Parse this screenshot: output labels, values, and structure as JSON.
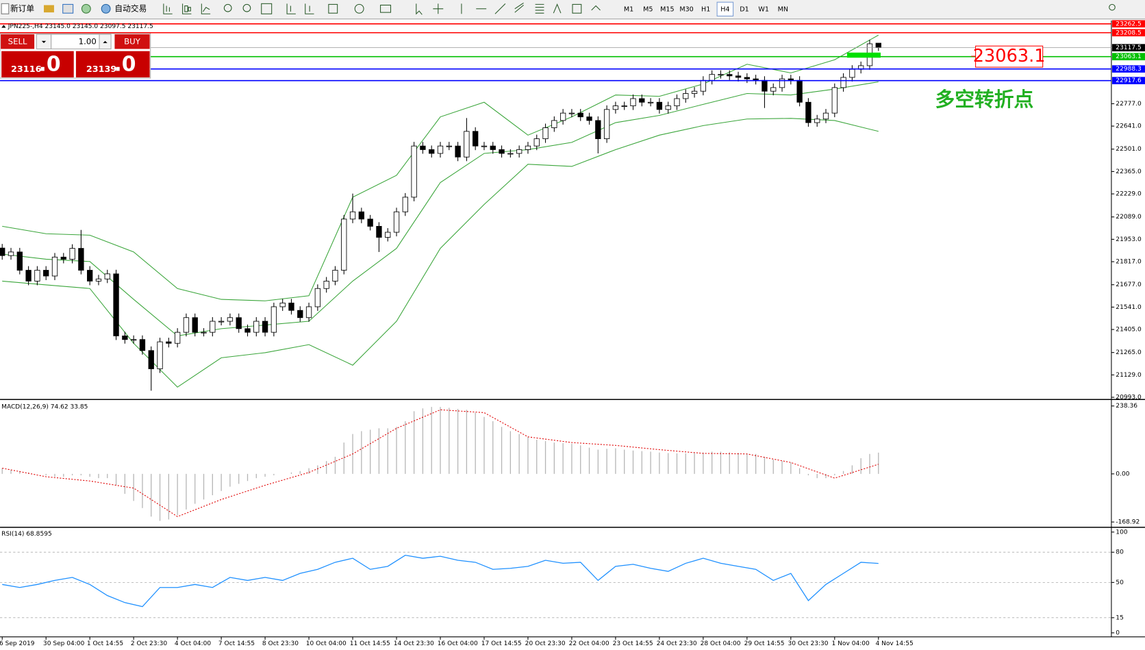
{
  "toolbar": {
    "new_order": "新订单",
    "auto_trading": "自动交易",
    "timeframes": [
      "M1",
      "M5",
      "M15",
      "M30",
      "H1",
      "H4",
      "D1",
      "W1",
      "MN"
    ],
    "active_timeframe": "H4"
  },
  "trade_panel": {
    "sell": "SELL",
    "buy": "BUY",
    "lots": "1.00",
    "sell_price": "23116",
    "sell_pips": ".0",
    "buy_price": "23139",
    "buy_pips": ".0"
  },
  "chart_data": [
    {
      "type": "candlestick",
      "title": "JPN225-,H4  23145.0 23145.0 23097.5 23117.5",
      "categories": [
        "6 Sep 2019",
        null,
        null,
        null,
        null,
        "30 Sep 04:00",
        null,
        null,
        null,
        null,
        "1 Oct 14:55",
        null,
        null,
        null,
        null,
        "2 Oct 23:30",
        null,
        null,
        null,
        null,
        "4 Oct 04:00",
        null,
        null,
        null,
        null,
        "7 Oct 14:55",
        null,
        null,
        null,
        null,
        "8 Oct 23:30",
        null,
        null,
        null,
        null,
        "10 Oct 04:00",
        null,
        null,
        null,
        null,
        "11 Oct 14:55",
        null,
        null,
        null,
        null,
        "14 Oct 23:30",
        null,
        null,
        null,
        null,
        "16 Oct 04:00",
        null,
        null,
        null,
        null,
        "17 Oct 14:55",
        null,
        null,
        null,
        null,
        "20 Oct 23:30",
        null,
        null,
        null,
        null,
        "22 Oct 04:00",
        null,
        null,
        null,
        null,
        "23 Oct 14:55",
        null,
        null,
        null,
        null,
        "24 Oct 23:30",
        null,
        null,
        null,
        null,
        "28 Oct 04:00",
        null,
        null,
        null,
        null,
        "29 Oct 14:55",
        null,
        null,
        null,
        null,
        "30 Oct 23:30",
        null,
        null,
        null,
        null,
        "1 Nov 04:00",
        null,
        null,
        null,
        null,
        "4 Nov 14:55"
      ],
      "open": [
        21900,
        21854,
        21876,
        21765,
        21699,
        21765,
        21730,
        21845,
        21832,
        21898,
        21765,
        21699,
        21712,
        21743,
        21366,
        21344,
        21344,
        21277,
        21166,
        21330,
        21321,
        21388,
        21477,
        21388,
        21388,
        21455,
        21455,
        21477,
        21410,
        21388,
        21455,
        21388,
        21543,
        21566,
        21521,
        21477,
        21543,
        21654,
        21699,
        21765,
        22076,
        22120,
        22076,
        22032,
        21965,
        21996,
        22120,
        22209,
        22520,
        22498,
        22475,
        22520,
        22520,
        22453,
        22609,
        22520,
        22520,
        22498,
        22475,
        22475,
        22498,
        22520,
        22564,
        22631,
        22675,
        22720,
        22720,
        22697,
        22675,
        22564,
        22742,
        22764,
        22764,
        22808,
        22786,
        22786,
        22742,
        22764,
        22808,
        22839,
        22853,
        22919,
        22955,
        22955,
        22946,
        22937,
        22928,
        22919,
        22853,
        22875,
        22928,
        22919,
        22786,
        22662,
        22684,
        22720,
        22875,
        22937,
        22986,
        23008,
        23145
      ],
      "high": [
        21925,
        21901,
        21901,
        21790,
        21790,
        21790,
        21870,
        21870,
        21923,
        22010,
        21790,
        21737,
        21768,
        21768,
        21391,
        21369,
        21369,
        21302,
        21355,
        21355,
        21413,
        21502,
        21502,
        21413,
        21480,
        21480,
        21502,
        21502,
        21435,
        21480,
        21480,
        21568,
        21591,
        21591,
        21546,
        21568,
        21679,
        21724,
        21790,
        22101,
        22231,
        22145,
        22101,
        22057,
        22021,
        22145,
        22234,
        22545,
        22545,
        22523,
        22545,
        22545,
        22545,
        22690,
        22634,
        22545,
        22545,
        22523,
        22500,
        22523,
        22545,
        22589,
        22656,
        22700,
        22745,
        22745,
        22745,
        22722,
        22700,
        22767,
        22789,
        22789,
        22833,
        22833,
        22811,
        22811,
        22789,
        22833,
        22864,
        22878,
        22944,
        22980,
        22980,
        22980,
        22971,
        22962,
        22953,
        22944,
        22900,
        22953,
        22953,
        22944,
        22811,
        22709,
        22745,
        22900,
        22962,
        23011,
        23033,
        23166,
        23145
      ],
      "low": [
        21829,
        21829,
        21740,
        21674,
        21674,
        21705,
        21705,
        21807,
        21807,
        21740,
        21674,
        21674,
        21687,
        21341,
        21319,
        21319,
        21252,
        21033,
        21141,
        21296,
        21296,
        21363,
        21363,
        21363,
        21363,
        21430,
        21430,
        21385,
        21363,
        21363,
        21363,
        21363,
        21518,
        21496,
        21452,
        21452,
        21518,
        21629,
        21674,
        21740,
        22051,
        22051,
        22007,
        21876,
        21940,
        21971,
        22095,
        22184,
        22473,
        22450,
        22450,
        22495,
        22428,
        22428,
        22495,
        22495,
        22473,
        22450,
        22450,
        22450,
        22473,
        22495,
        22539,
        22606,
        22650,
        22695,
        22672,
        22650,
        22475,
        22539,
        22717,
        22739,
        22739,
        22761,
        22761,
        22717,
        22717,
        22739,
        22783,
        22814,
        22828,
        22894,
        22930,
        22921,
        22912,
        22903,
        22894,
        22751,
        22828,
        22850,
        22894,
        22761,
        22637,
        22637,
        22659,
        22695,
        22850,
        22912,
        22961,
        22983,
        23097.5
      ],
      "close": [
        21854,
        21876,
        21765,
        21699,
        21765,
        21730,
        21845,
        21832,
        21898,
        21765,
        21699,
        21712,
        21743,
        21366,
        21344,
        21344,
        21277,
        21166,
        21330,
        21321,
        21388,
        21477,
        21388,
        21388,
        21455,
        21455,
        21477,
        21410,
        21388,
        21455,
        21388,
        21543,
        21566,
        21521,
        21477,
        21543,
        21654,
        21699,
        21765,
        22076,
        22120,
        22076,
        22032,
        21965,
        21996,
        22120,
        22209,
        22520,
        22498,
        22475,
        22520,
        22520,
        22453,
        22609,
        22520,
        22520,
        22498,
        22475,
        22475,
        22498,
        22520,
        22564,
        22631,
        22675,
        22720,
        22720,
        22697,
        22675,
        22564,
        22742,
        22764,
        22764,
        22808,
        22786,
        22786,
        22742,
        22764,
        22808,
        22839,
        22853,
        22919,
        22955,
        22955,
        22946,
        22937,
        22928,
        22919,
        22853,
        22875,
        22928,
        22919,
        22786,
        22662,
        22684,
        22720,
        22875,
        22937,
        22986,
        23008,
        23141,
        23117.5
      ],
      "up_color": "#ffffff",
      "down_color": "#000000",
      "bands": [
        {
          "color": "#3aa53a",
          "x": [
            0,
            5,
            10,
            15,
            20,
            25,
            30,
            35,
            40,
            45,
            50,
            55,
            60,
            65,
            70,
            75,
            80,
            85,
            90,
            95,
            100
          ],
          "values": [
            22032,
            21987,
            21978,
            21876,
            21654,
            21588,
            21579,
            21610,
            22209,
            22342,
            22697,
            22786,
            22586,
            22697,
            22830,
            22822,
            22897,
            23017,
            22964,
            23044,
            23194
          ]
        },
        {
          "color": "#3aa53a",
          "x": [
            0,
            5,
            10,
            15,
            20,
            25,
            30,
            35,
            40,
            45,
            50,
            55,
            60,
            65,
            70,
            75,
            80,
            85,
            90,
            95,
            100
          ],
          "values": [
            21863,
            21832,
            21818,
            21588,
            21366,
            21410,
            21432,
            21455,
            21699,
            21898,
            22298,
            22475,
            22498,
            22542,
            22662,
            22706,
            22773,
            22839,
            22830,
            22866,
            22910
          ]
        },
        {
          "color": "#3aa53a",
          "x": [
            0,
            5,
            10,
            15,
            20,
            25,
            30,
            35,
            40,
            45,
            50,
            55,
            60,
            65,
            70,
            75,
            80,
            85,
            90,
            95,
            100
          ],
          "values": [
            21699,
            21676,
            21654,
            21321,
            21055,
            21233,
            21264,
            21313,
            21188,
            21455,
            21898,
            22165,
            22409,
            22396,
            22498,
            22586,
            22644,
            22684,
            22688,
            22675,
            22609
          ]
        }
      ],
      "hlines": [
        {
          "value": 23262.5,
          "color": "#ff0000"
        },
        {
          "value": 23208.5,
          "color": "#ff0000"
        },
        {
          "value": 23063.1,
          "color": "#00c000"
        },
        {
          "value": 22988.3,
          "color": "#0000ff"
        },
        {
          "value": 22917.6,
          "color": "#0000ff"
        }
      ],
      "current": {
        "value": 23117.5,
        "color": "#000000"
      },
      "annotations": [
        {
          "text": "23063.1",
          "color": "#ff0000"
        },
        {
          "text": "多空转折点",
          "color": "#22b022"
        }
      ],
      "ylim": [
        20984,
        23283
      ],
      "yticks": [
        {
          "value": 22777,
          "label": "22777.0"
        },
        {
          "value": 22641,
          "label": "22641.0"
        },
        {
          "value": 22501,
          "label": "22501.0"
        },
        {
          "value": 22365,
          "label": "22365.0"
        },
        {
          "value": 22229,
          "label": "22229.0"
        },
        {
          "value": 22089,
          "label": "22089.0"
        },
        {
          "value": 21953,
          "label": "21953.0"
        },
        {
          "value": 21817,
          "label": "21817.0"
        },
        {
          "value": 21677,
          "label": "21677.0"
        },
        {
          "value": 21541,
          "label": "21541.0"
        },
        {
          "value": 21405,
          "label": "21405.0"
        },
        {
          "value": 21265,
          "label": "21265.0"
        },
        {
          "value": 21129,
          "label": "21129.0"
        },
        {
          "value": 20993,
          "label": "20993.0"
        }
      ]
    },
    {
      "type": "macd",
      "title": "MACD(12,26,9) 74.62 33.85",
      "values": [
        20,
        15,
        10,
        5,
        0,
        -5,
        -10,
        -10,
        -5,
        -5,
        -10,
        -15,
        -15,
        -40,
        -70,
        -95,
        -120,
        -150,
        -165,
        -160,
        -145,
        -125,
        -105,
        -90,
        -75,
        -60,
        -45,
        -35,
        -25,
        -15,
        -10,
        -5,
        0,
        5,
        10,
        20,
        30,
        45,
        60,
        110,
        140,
        150,
        155,
        160,
        160,
        165,
        185,
        220,
        230,
        235,
        235,
        232,
        228,
        225,
        215,
        200,
        185,
        165,
        150,
        140,
        130,
        120,
        115,
        110,
        108,
        106,
        100,
        92,
        85,
        88,
        90,
        85,
        82,
        80,
        78,
        75,
        73,
        72,
        72,
        73,
        75,
        78,
        78,
        76,
        74,
        72,
        70,
        60,
        50,
        45,
        40,
        20,
        -5,
        -15,
        -15,
        -5,
        10,
        30,
        55,
        70,
        74.62
      ],
      "color": "#b4b4b4",
      "signal": {
        "color": "#e00000",
        "x": [
          0,
          5,
          10,
          15,
          20,
          25,
          30,
          35,
          40,
          45,
          50,
          55,
          60,
          65,
          70,
          75,
          80,
          85,
          90,
          95,
          100
        ],
        "values": [
          20,
          -10,
          -25,
          -50,
          -150,
          -90,
          -40,
          5,
          70,
          160,
          225,
          215,
          130,
          110,
          100,
          85,
          72,
          70,
          40,
          -15,
          33.85
        ]
      },
      "ylim": [
        -185,
        256
      ],
      "yticks": [
        238.36,
        {
          "value": 0,
          "label": "0.00"
        },
        -168.92
      ]
    },
    {
      "type": "line",
      "title": "RSI(14) 68.8595",
      "x": [
        0,
        2,
        4,
        6,
        8,
        10,
        12,
        14,
        16,
        18,
        20,
        22,
        24,
        26,
        28,
        30,
        32,
        34,
        36,
        38,
        40,
        42,
        44,
        46,
        48,
        50,
        52,
        54,
        56,
        58,
        60,
        62,
        64,
        66,
        68,
        70,
        72,
        74,
        76,
        78,
        80,
        82,
        84,
        86,
        88,
        90,
        92,
        94,
        96,
        98,
        100
      ],
      "values": [
        48,
        45,
        48,
        52,
        55,
        48,
        37,
        30,
        26,
        45,
        45,
        48,
        45,
        55,
        52,
        55,
        52,
        59,
        63,
        70,
        74,
        63,
        66,
        77,
        74,
        76,
        72,
        70,
        63,
        64,
        66,
        72,
        69,
        70,
        52,
        66,
        68,
        64,
        61,
        69,
        74,
        69,
        66,
        63,
        52,
        59,
        32,
        48,
        59,
        70,
        68.8595
      ],
      "color": "#1e90ff",
      "levels": [
        80,
        50,
        15
      ],
      "ylim": [
        -4,
        104
      ],
      "yticks": [
        100,
        80,
        50,
        15,
        0
      ]
    }
  ]
}
